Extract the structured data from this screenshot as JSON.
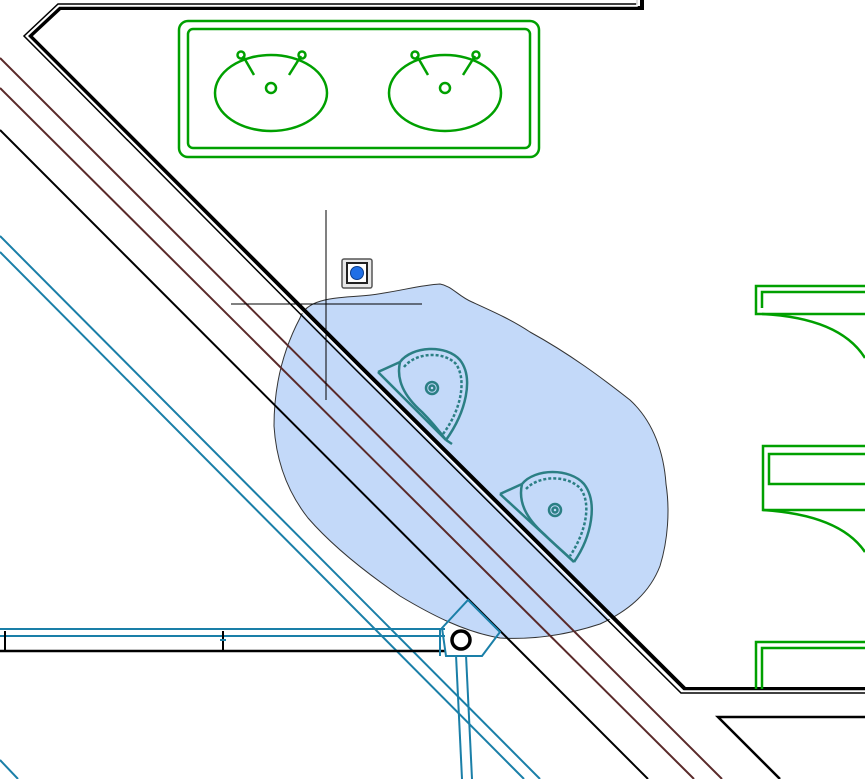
{
  "colors": {
    "background": "#ffffff",
    "wall": "#000000",
    "fixture_green": "#00a000",
    "pipe_blue": "#1a7fa8",
    "pipe_brown": "#5a2a2a",
    "selection_fill": "#b8d2f8",
    "selection_stroke": "#333333",
    "selected_fixture": "#2b7f84",
    "crosshair": "#000000",
    "snap_marker_fill": "#1f6fe6"
  },
  "icons": {
    "crosshair": "crosshair-cursor-icon",
    "snap_marker": "object-snap-node-icon"
  },
  "lasso_selection": {
    "active": true
  }
}
